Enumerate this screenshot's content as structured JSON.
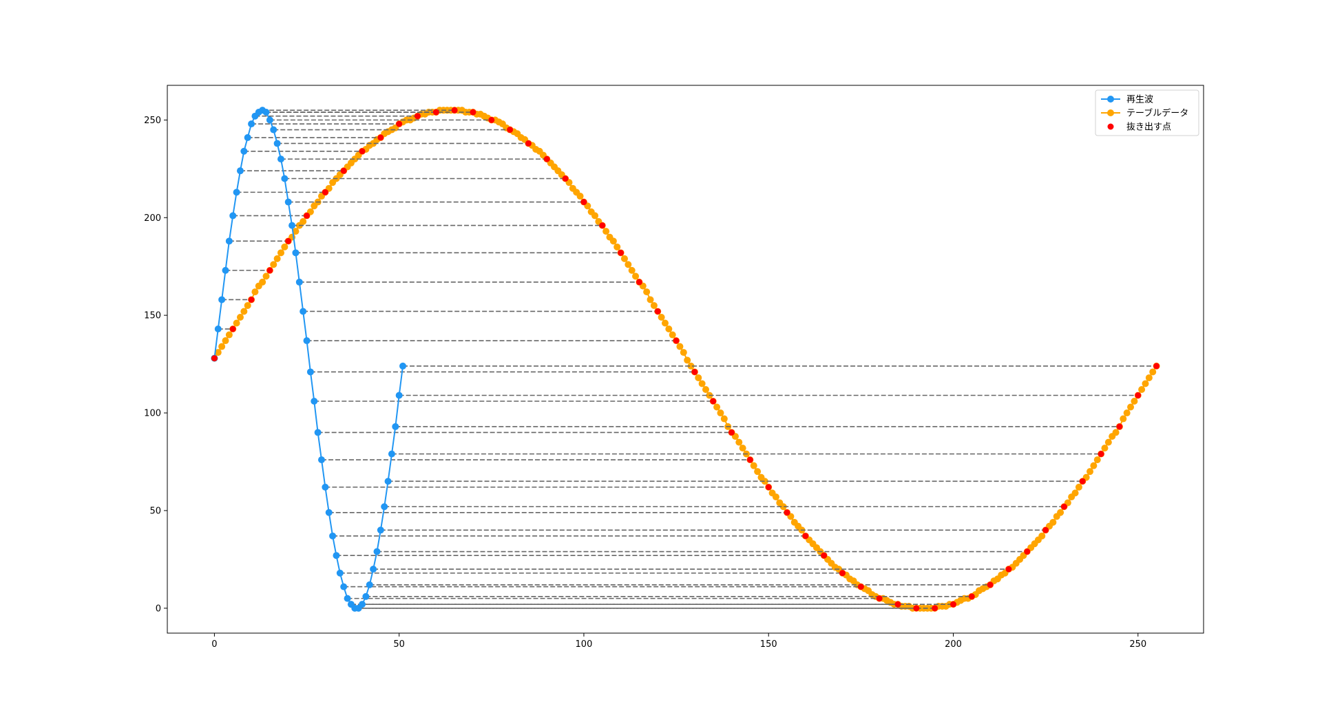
{
  "chart_data": {
    "type": "line",
    "xlim": [
      -12.75,
      267.75
    ],
    "ylim": [
      -12.75,
      267.75
    ],
    "xticks": [
      0,
      50,
      100,
      150,
      200,
      250
    ],
    "yticks": [
      0,
      50,
      100,
      150,
      200,
      250
    ],
    "legend": "upper right",
    "guide_lines": true,
    "series": [
      {
        "name": "テーブルデータ",
        "color": "#ffa500",
        "line": true,
        "x": [
          0,
          1,
          2,
          3,
          4,
          5,
          6,
          7,
          8,
          9,
          10,
          11,
          12,
          13,
          14,
          15,
          16,
          17,
          18,
          19,
          20,
          21,
          22,
          23,
          24,
          25,
          26,
          27,
          28,
          29,
          30,
          31,
          32,
          33,
          34,
          35,
          36,
          37,
          38,
          39,
          40,
          41,
          42,
          43,
          44,
          45,
          46,
          47,
          48,
          49,
          50,
          51,
          52,
          53,
          54,
          55,
          56,
          57,
          58,
          59,
          60,
          61,
          62,
          63,
          64,
          65,
          66,
          67,
          68,
          69,
          70,
          71,
          72,
          73,
          74,
          75,
          76,
          77,
          78,
          79,
          80,
          81,
          82,
          83,
          84,
          85,
          86,
          87,
          88,
          89,
          90,
          91,
          92,
          93,
          94,
          95,
          96,
          97,
          98,
          99,
          100,
          101,
          102,
          103,
          104,
          105,
          106,
          107,
          108,
          109,
          110,
          111,
          112,
          113,
          114,
          115,
          116,
          117,
          118,
          119,
          120,
          121,
          122,
          123,
          124,
          125,
          126,
          127,
          128,
          129,
          130,
          131,
          132,
          133,
          134,
          135,
          136,
          137,
          138,
          139,
          140,
          141,
          142,
          143,
          144,
          145,
          146,
          147,
          148,
          149,
          150,
          151,
          152,
          153,
          154,
          155,
          156,
          157,
          158,
          159,
          160,
          161,
          162,
          163,
          164,
          165,
          166,
          167,
          168,
          169,
          170,
          171,
          172,
          173,
          174,
          175,
          176,
          177,
          178,
          179,
          180,
          181,
          182,
          183,
          184,
          185,
          186,
          187,
          188,
          189,
          190,
          191,
          192,
          193,
          194,
          195,
          196,
          197,
          198,
          199,
          200,
          201,
          202,
          203,
          204,
          205,
          206,
          207,
          208,
          209,
          210,
          211,
          212,
          213,
          214,
          215,
          216,
          217,
          218,
          219,
          220,
          221,
          222,
          223,
          224,
          225,
          226,
          227,
          228,
          229,
          230,
          231,
          232,
          233,
          234,
          235,
          236,
          237,
          238,
          239,
          240,
          241,
          242,
          243,
          244,
          245,
          246,
          247,
          248,
          249,
          250,
          251,
          252,
          253,
          254,
          255
        ],
        "values": [
          128,
          131,
          134,
          137,
          140,
          143,
          146,
          149,
          152,
          155,
          158,
          162,
          165,
          167,
          170,
          173,
          176,
          179,
          182,
          185,
          188,
          190,
          193,
          196,
          198,
          201,
          203,
          206,
          208,
          211,
          213,
          215,
          218,
          220,
          222,
          224,
          226,
          228,
          230,
          232,
          234,
          235,
          237,
          238,
          240,
          241,
          243,
          244,
          245,
          246,
          248,
          249,
          250,
          250,
          251,
          252,
          253,
          253,
          254,
          254,
          254,
          255,
          255,
          255,
          255,
          255,
          255,
          255,
          254,
          254,
          254,
          253,
          253,
          252,
          251,
          250,
          250,
          249,
          248,
          246,
          245,
          244,
          243,
          241,
          240,
          238,
          237,
          235,
          234,
          232,
          230,
          228,
          226,
          224,
          222,
          220,
          218,
          215,
          213,
          211,
          208,
          206,
          203,
          201,
          198,
          196,
          193,
          190,
          188,
          185,
          182,
          179,
          176,
          173,
          170,
          167,
          165,
          162,
          158,
          155,
          152,
          149,
          146,
          143,
          140,
          137,
          134,
          131,
          127,
          124,
          121,
          118,
          115,
          112,
          109,
          106,
          103,
          100,
          97,
          93,
          90,
          88,
          85,
          82,
          79,
          76,
          73,
          70,
          67,
          65,
          62,
          59,
          57,
          54,
          52,
          49,
          47,
          44,
          42,
          40,
          37,
          35,
          33,
          31,
          29,
          27,
          25,
          23,
          21,
          20,
          18,
          17,
          15,
          14,
          12,
          11,
          10,
          9,
          7,
          6,
          5,
          5,
          4,
          3,
          2,
          2,
          1,
          1,
          1,
          0,
          0,
          0,
          0,
          0,
          0,
          0,
          1,
          1,
          1,
          2,
          2,
          3,
          4,
          5,
          5,
          6,
          7,
          9,
          10,
          11,
          12,
          14,
          15,
          17,
          18,
          20,
          21,
          23,
          25,
          27,
          29,
          31,
          33,
          35,
          37,
          40,
          42,
          44,
          47,
          49,
          52,
          54,
          57,
          59,
          62,
          65,
          67,
          70,
          73,
          76,
          79,
          82,
          85,
          88,
          90,
          93,
          97,
          100,
          103,
          106,
          109,
          112,
          115,
          118,
          121,
          124
        ]
      },
      {
        "name": "再生波",
        "color": "#2196f3",
        "line": true,
        "x": [
          0,
          1,
          2,
          3,
          4,
          5,
          6,
          7,
          8,
          9,
          10,
          11,
          12,
          13,
          14,
          15,
          16,
          17,
          18,
          19,
          20,
          21,
          22,
          23,
          24,
          25,
          26,
          27,
          28,
          29,
          30,
          31,
          32,
          33,
          34,
          35,
          36,
          37,
          38,
          39,
          40,
          41,
          42,
          43,
          44,
          45,
          46,
          47,
          48,
          49,
          50,
          51
        ],
        "values": [
          128,
          143,
          158,
          173,
          188,
          201,
          213,
          224,
          234,
          241,
          248,
          252,
          254,
          255,
          254,
          250,
          245,
          238,
          230,
          220,
          208,
          196,
          182,
          167,
          152,
          137,
          121,
          106,
          90,
          76,
          62,
          49,
          37,
          27,
          18,
          11,
          5,
          2,
          0,
          0,
          2,
          6,
          12,
          20,
          29,
          40,
          52,
          65,
          79,
          93,
          109,
          124
        ]
      },
      {
        "name": "抜き出す点",
        "color": "#ff0000",
        "line": false,
        "x": [
          0,
          5,
          10,
          15,
          20,
          25,
          30,
          35,
          40,
          45,
          50,
          55,
          60,
          65,
          70,
          75,
          80,
          85,
          90,
          95,
          100,
          105,
          110,
          115,
          120,
          125,
          130,
          135,
          140,
          145,
          150,
          155,
          160,
          165,
          170,
          175,
          180,
          185,
          190,
          195,
          200,
          205,
          210,
          215,
          220,
          225,
          230,
          235,
          240,
          245,
          250,
          255
        ],
        "values": [
          128,
          143,
          158,
          173,
          188,
          201,
          213,
          224,
          234,
          241,
          248,
          252,
          254,
          255,
          254,
          250,
          245,
          238,
          230,
          220,
          208,
          196,
          182,
          167,
          152,
          137,
          121,
          106,
          90,
          76,
          62,
          49,
          37,
          27,
          18,
          11,
          5,
          2,
          0,
          0,
          2,
          6,
          12,
          20,
          29,
          40,
          52,
          65,
          79,
          93,
          109,
          124
        ]
      }
    ]
  }
}
